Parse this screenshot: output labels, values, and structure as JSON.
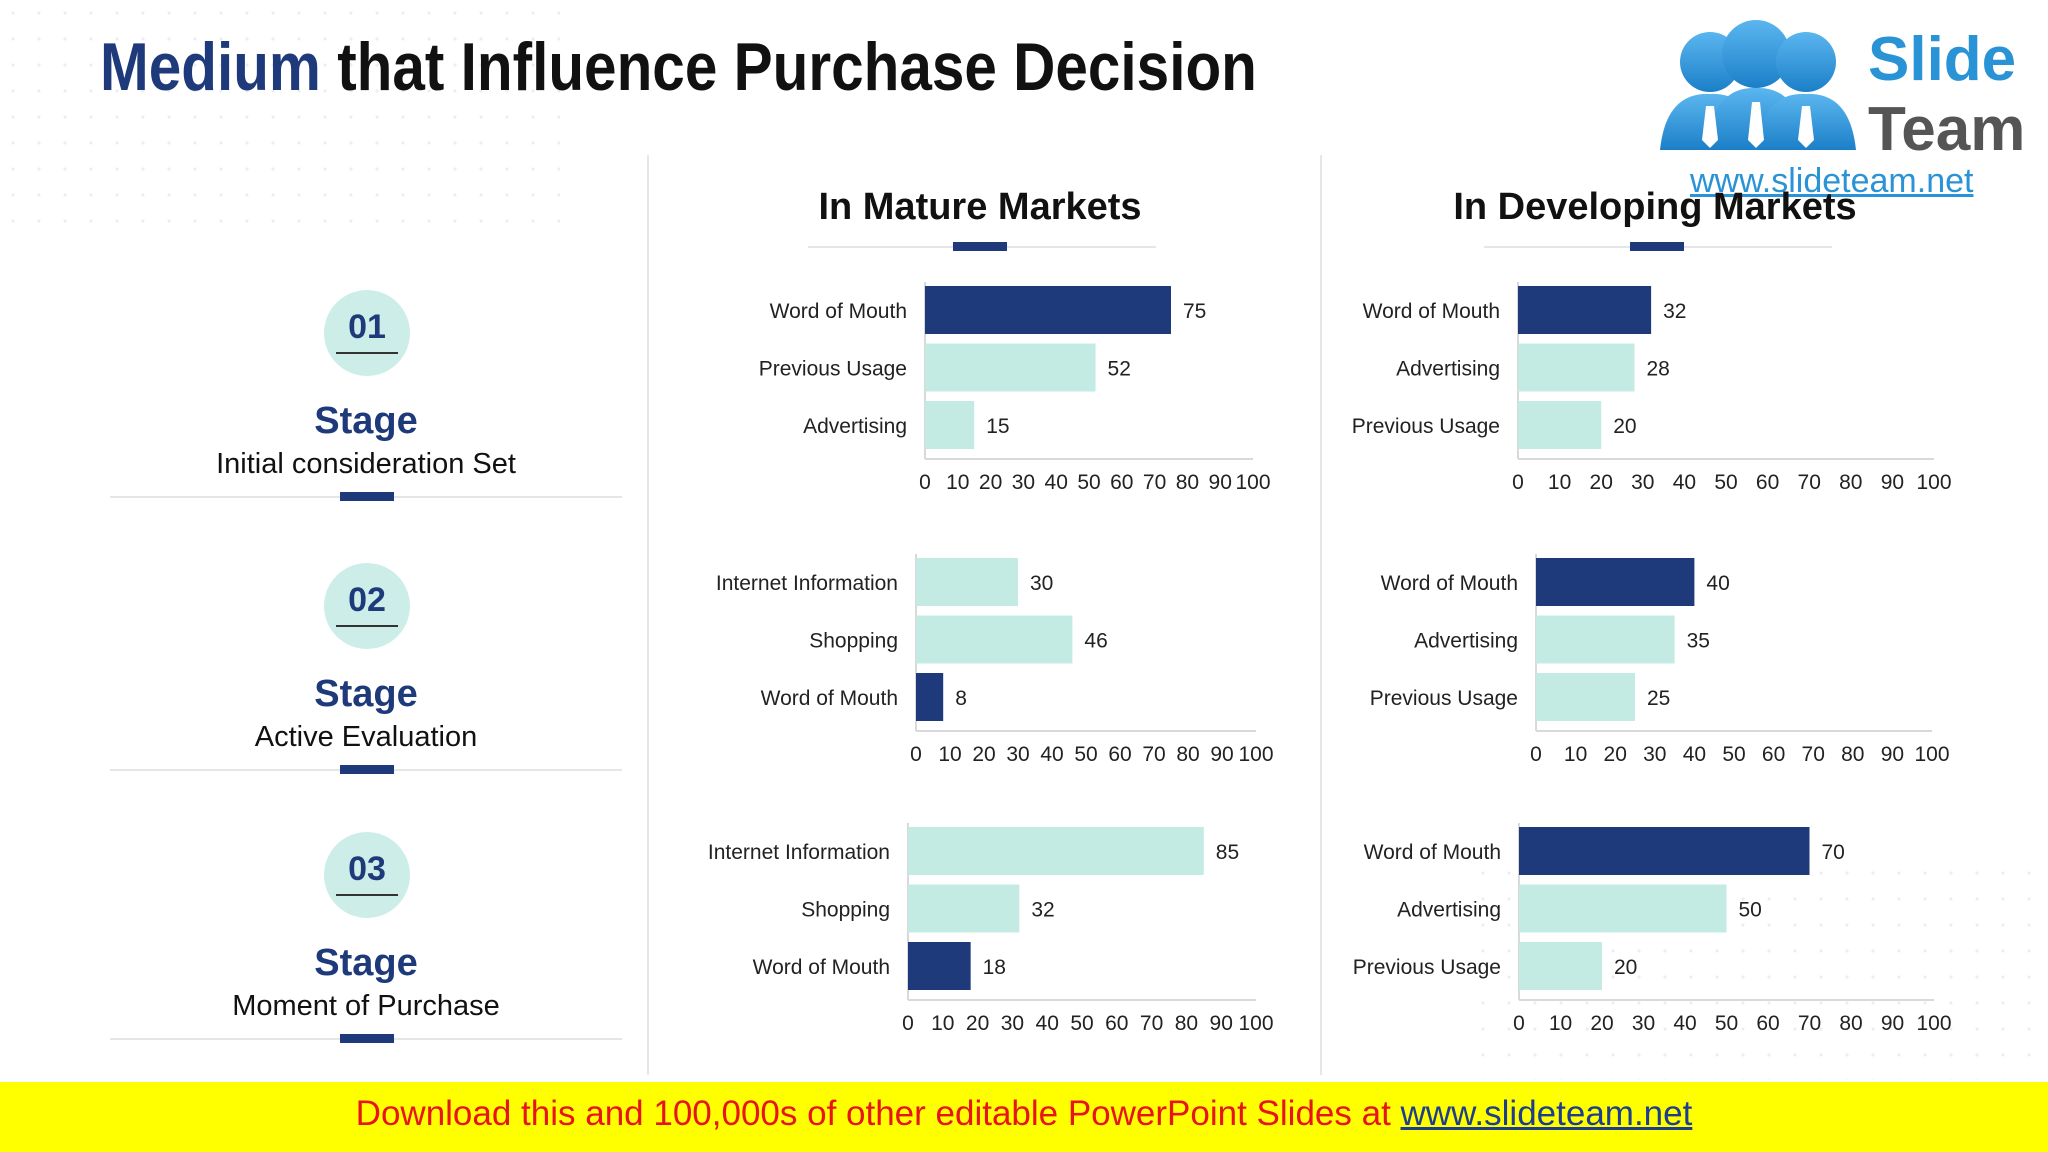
{
  "title": {
    "accent": "Medium",
    "rest": "that Influence Purchase Decision"
  },
  "logo": {
    "word1": "Slide",
    "word2": "Team",
    "url": "www.slideteam.net"
  },
  "columns": {
    "mature": "In Mature Markets",
    "developing": "In Developing Markets"
  },
  "stages": [
    {
      "number": "01",
      "label": "Stage",
      "description": "Initial consideration Set"
    },
    {
      "number": "02",
      "label": "Stage",
      "description": "Active Evaluation"
    },
    {
      "number": "03",
      "label": "Stage",
      "description": "Moment of Purchase"
    }
  ],
  "colors": {
    "highlight": "#1f3a7a",
    "base": "#c3ebe3",
    "accent": "#1f3a7a"
  },
  "chart_data": [
    {
      "type": "bar",
      "orientation": "horizontal",
      "market": "In Mature Markets",
      "stage": "01",
      "categories": [
        "Word of Mouth",
        "Previous Usage",
        "Advertising"
      ],
      "values": [
        75,
        52,
        15
      ],
      "highlight": [
        true,
        false,
        false
      ],
      "xlim": [
        0,
        100
      ],
      "xticks": [
        "0",
        "10",
        "20",
        "30",
        "40",
        "50",
        "60",
        "70",
        "80",
        "90",
        "100"
      ]
    },
    {
      "type": "bar",
      "orientation": "horizontal",
      "market": "In Developing Markets",
      "stage": "01",
      "categories": [
        "Word of Mouth",
        "Advertising",
        "Previous Usage"
      ],
      "values": [
        32,
        28,
        20
      ],
      "highlight": [
        true,
        false,
        false
      ],
      "xlim": [
        0,
        100
      ],
      "xticks": [
        "0",
        "10",
        "20",
        "30",
        "40",
        "50",
        "60",
        "70",
        "80",
        "90",
        "100"
      ]
    },
    {
      "type": "bar",
      "orientation": "horizontal",
      "market": "In Mature Markets",
      "stage": "02",
      "categories": [
        "Internet Information",
        "Shopping",
        "Word of Mouth"
      ],
      "values": [
        30,
        46,
        8
      ],
      "highlight": [
        false,
        false,
        true
      ],
      "xlim": [
        0,
        100
      ],
      "xticks": [
        "0",
        "10",
        "20",
        "30",
        "40",
        "50",
        "60",
        "70",
        "80",
        "90",
        "100"
      ]
    },
    {
      "type": "bar",
      "orientation": "horizontal",
      "market": "In Developing Markets",
      "stage": "02",
      "categories": [
        "Word of Mouth",
        "Advertising",
        "Previous Usage"
      ],
      "values": [
        40,
        35,
        25
      ],
      "highlight": [
        true,
        false,
        false
      ],
      "xlim": [
        0,
        100
      ],
      "xticks": [
        "0",
        "10",
        "20",
        "30",
        "40",
        "50",
        "60",
        "70",
        "80",
        "90",
        "100"
      ]
    },
    {
      "type": "bar",
      "orientation": "horizontal",
      "market": "In Mature Markets",
      "stage": "03",
      "categories": [
        "Internet Information",
        "Shopping",
        "Word of Mouth"
      ],
      "values": [
        85,
        32,
        18
      ],
      "highlight": [
        false,
        false,
        true
      ],
      "xlim": [
        0,
        100
      ],
      "xticks": [
        "0",
        "10",
        "20",
        "30",
        "40",
        "50",
        "60",
        "70",
        "80",
        "90",
        "100"
      ]
    },
    {
      "type": "bar",
      "orientation": "horizontal",
      "market": "In Developing Markets",
      "stage": "03",
      "categories": [
        "Word of Mouth",
        "Advertising",
        "Previous Usage"
      ],
      "values": [
        70,
        50,
        20
      ],
      "highlight": [
        true,
        false,
        false
      ],
      "xlim": [
        0,
        100
      ],
      "xticks": [
        "0",
        "10",
        "20",
        "30",
        "40",
        "50",
        "60",
        "70",
        "80",
        "90",
        "100"
      ]
    }
  ],
  "banner": {
    "text": "Download this and 100,000s of other editable PowerPoint Slides at",
    "link": "www.slideteam.net"
  }
}
